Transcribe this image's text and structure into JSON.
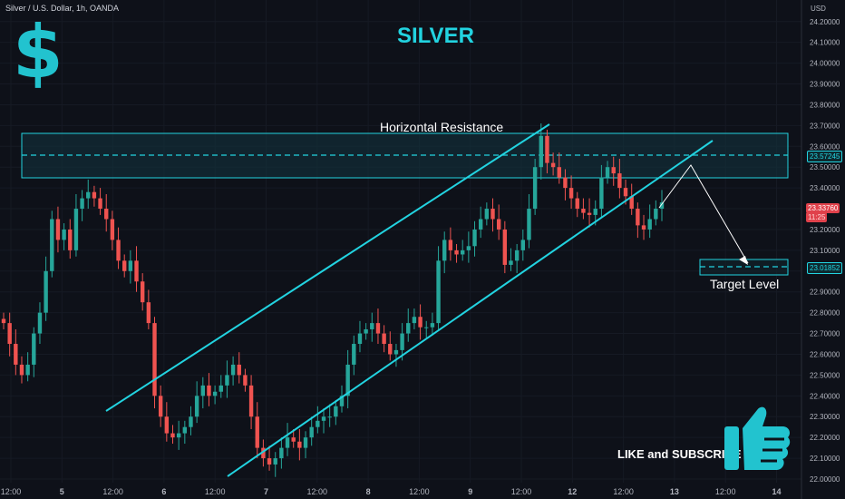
{
  "symbol_line": "Silver / U.S. Dollar, 1h, OANDA",
  "title": "SILVER",
  "currency_icon": "dollar-sign-icon",
  "cta_text": "LIKE and SUBSCRIBE",
  "cta_icon": "thumbs-up-icon",
  "colors": {
    "bg": "#0e1119",
    "accent": "#22d3e0",
    "up": "#26a69a",
    "down": "#ef5350",
    "grid": "#1b1f2a"
  },
  "chart_data": {
    "type": "candlestick",
    "axis": {
      "currency": "USD",
      "y_ticks": [
        "24.20000",
        "24.10000",
        "24.00000",
        "23.90000",
        "23.80000",
        "23.70000",
        "23.60000",
        "23.50000",
        "23.40000",
        "23.30000",
        "23.20000",
        "23.10000",
        "23.00000",
        "22.90000",
        "22.80000",
        "22.70000",
        "22.60000",
        "22.50000",
        "22.40000",
        "22.30000",
        "22.20000",
        "22.10000",
        "22.00000"
      ],
      "x_ticks": [
        "12:00",
        "5",
        "12:00",
        "6",
        "12:00",
        "7",
        "12:00",
        "8",
        "12:00",
        "9",
        "12:00",
        "12",
        "12:00",
        "13",
        "12:00",
        "14"
      ],
      "ylim": [
        21.98,
        24.27
      ]
    },
    "closes": [
      22.75,
      22.65,
      22.55,
      22.5,
      22.55,
      22.7,
      22.8,
      23.0,
      23.25,
      23.15,
      23.2,
      23.1,
      23.3,
      23.35,
      23.38,
      23.35,
      23.3,
      23.25,
      23.15,
      23.05,
      23.0,
      23.05,
      22.95,
      22.85,
      22.75,
      22.4,
      22.3,
      22.22,
      22.2,
      22.22,
      22.25,
      22.3,
      22.4,
      22.45,
      22.4,
      22.42,
      22.45,
      22.5,
      22.55,
      22.5,
      22.45,
      22.3,
      22.15,
      22.1,
      22.07,
      22.1,
      22.15,
      22.2,
      22.18,
      22.15,
      22.2,
      22.25,
      22.28,
      22.3,
      22.3,
      22.35,
      22.4,
      22.55,
      22.65,
      22.7,
      22.72,
      22.75,
      22.7,
      22.65,
      22.6,
      22.62,
      22.7,
      22.75,
      22.78,
      22.73,
      22.73,
      22.75,
      23.05,
      23.15,
      23.1,
      23.08,
      23.1,
      23.12,
      23.2,
      23.25,
      23.3,
      23.25,
      23.2,
      23.03,
      23.05,
      23.1,
      23.15,
      23.3,
      23.5,
      23.65,
      23.52,
      23.5,
      23.45,
      23.4,
      23.35,
      23.3,
      23.28,
      23.27,
      23.3,
      23.45,
      23.5,
      23.47,
      23.4,
      23.36,
      23.3,
      23.22,
      23.2,
      23.25,
      23.3,
      23.33
    ],
    "levels": {
      "resistance_mid": "23.57245",
      "target": "23.01852",
      "current": "23.33760",
      "current_countdown": "11:25"
    },
    "annotations": {
      "resistance": "Horizontal Resistance",
      "target": "Target Level"
    }
  }
}
